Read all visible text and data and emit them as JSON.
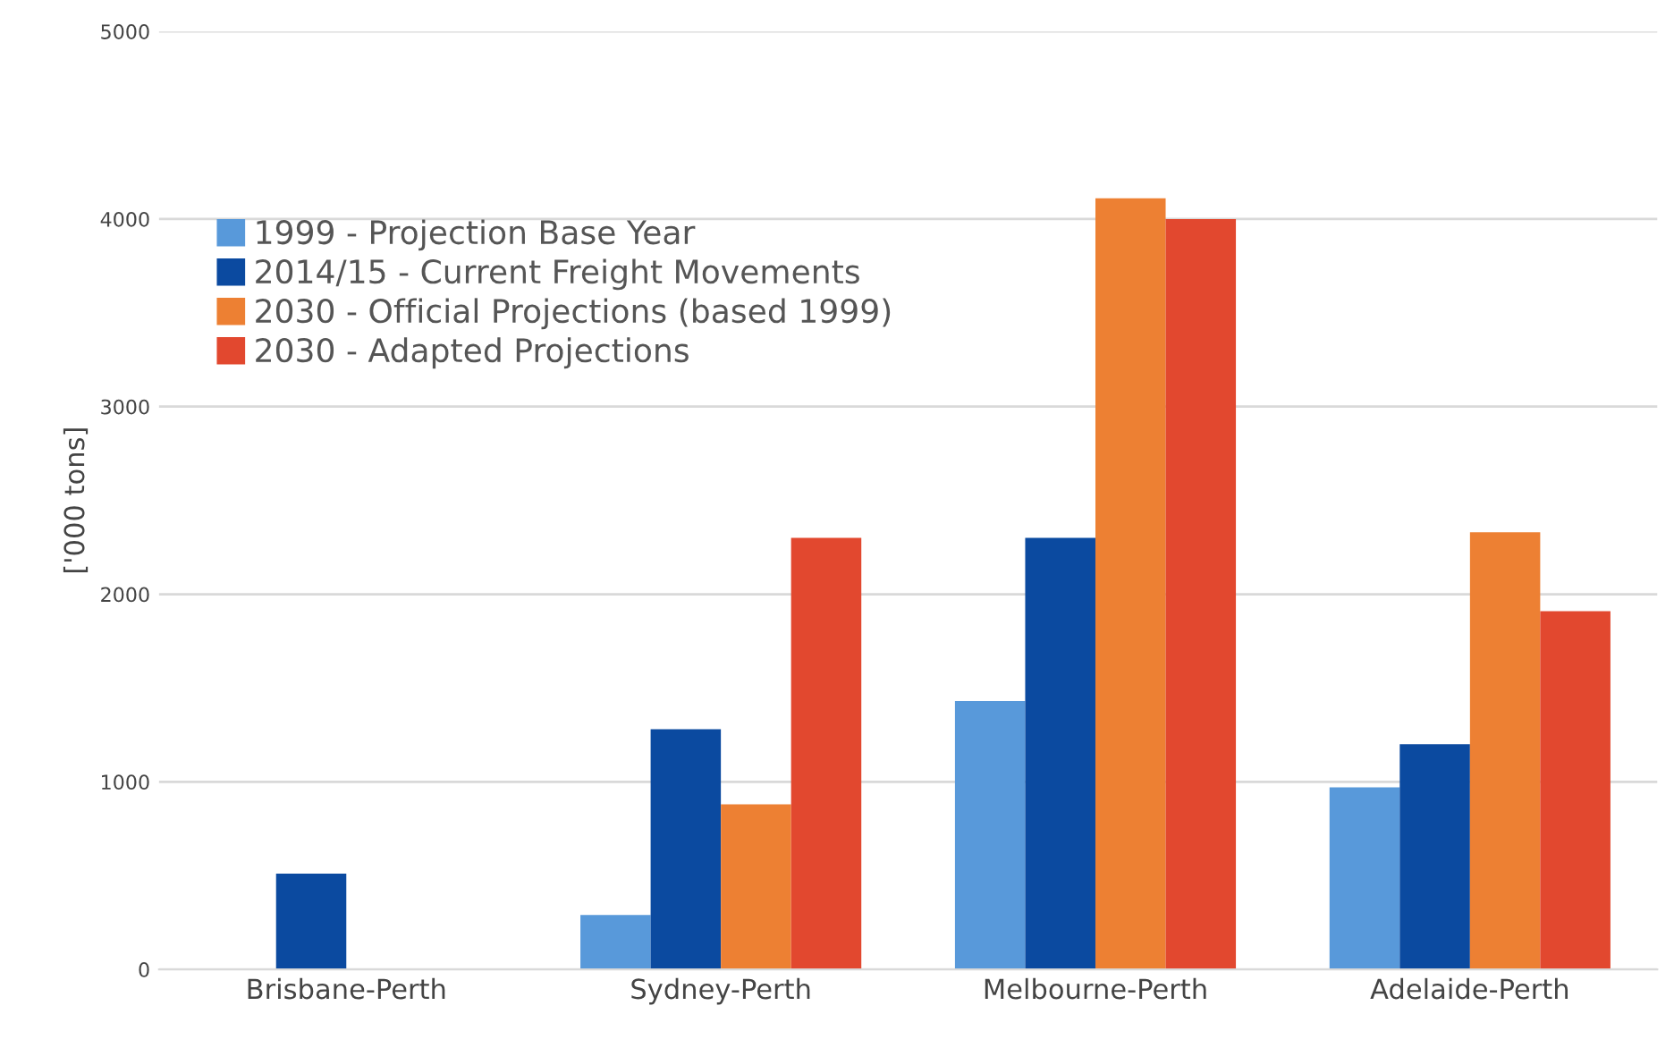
{
  "chart_data": {
    "type": "bar",
    "ylabel": "['000 tons]",
    "categories": [
      "Brisbane-Perth",
      "Sydney-Perth",
      "Melbourne-Perth",
      "Adelaide-Perth"
    ],
    "series": [
      {
        "name": "1999 - Projection Base Year",
        "color": "#5899da",
        "values": [
          null,
          290,
          1430,
          970
        ]
      },
      {
        "name": "2014/15 - Current Freight Movements",
        "color": "#0b4aa0",
        "values": [
          510,
          1280,
          2300,
          1200
        ]
      },
      {
        "name": "2030 - Official Projections (based 1999)",
        "color": "#ed8033",
        "values": [
          null,
          880,
          4110,
          2330
        ]
      },
      {
        "name": "2030 - Adapted Projections",
        "color": "#e2482f",
        "values": [
          null,
          2300,
          4000,
          1910
        ]
      }
    ],
    "ylim": [
      0,
      5000
    ],
    "yticks": [
      0,
      1000,
      2000,
      3000,
      4000,
      5000
    ],
    "grid": "y",
    "legend": "left"
  }
}
